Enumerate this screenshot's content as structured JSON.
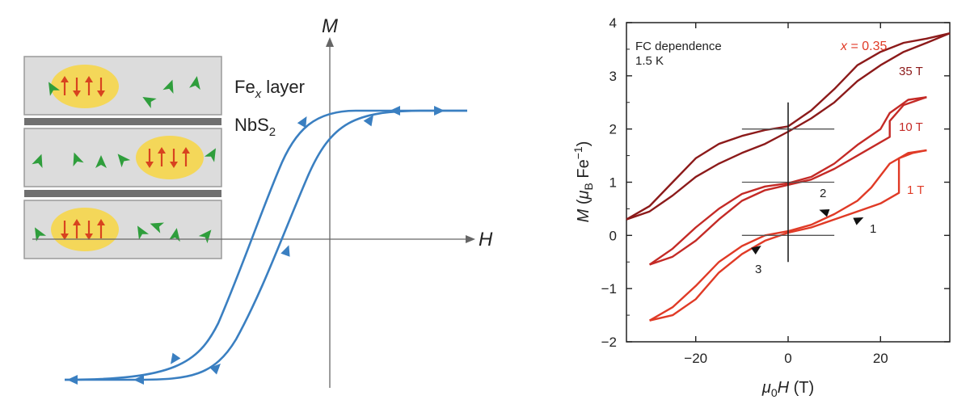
{
  "schematic": {
    "layer_label_main": "Fe",
    "layer_label_sub": "x",
    "layer_label_rest": " layer",
    "spacer_label_main": "NbS",
    "spacer_label_sub": "2",
    "axis_y": "M",
    "axis_x": "H",
    "colors": {
      "loop": "#3a7fc1",
      "spin_up": "#d8431f",
      "spin_green": "#2f9e3c",
      "cluster": "#f6d64a",
      "layer": "#d9d9d9",
      "spacer": "#6f6f6f"
    }
  },
  "chart_data": {
    "type": "line",
    "annotation_title": "FC dependence",
    "annotation_temp": "1.5 K",
    "composition_label": "x = 0.35",
    "xlabel": "μ0H (T)",
    "ylabel": "M (μB Fe−1)",
    "xlim": [
      -35,
      35
    ],
    "ylim": [
      -2,
      4
    ],
    "x_ticks": [
      "−20",
      "0",
      "20"
    ],
    "x_tick_values": [
      -20,
      0,
      20
    ],
    "y_ticks": [
      "−2",
      "−1",
      "0",
      "1",
      "2",
      "3",
      "4"
    ],
    "y_tick_values": [
      -2,
      -1,
      0,
      1,
      2,
      3,
      4
    ],
    "grid": false,
    "series": [
      {
        "name": "35 T",
        "color": "#8c1a1a",
        "sweep_down": [
          [
            35,
            3.8
          ],
          [
            30,
            3.7
          ],
          [
            25,
            3.62
          ],
          [
            20,
            3.45
          ],
          [
            15,
            3.2
          ],
          [
            10,
            2.75
          ],
          [
            5,
            2.35
          ],
          [
            0,
            2.05
          ],
          [
            -5,
            1.98
          ],
          [
            -10,
            1.87
          ],
          [
            -15,
            1.72
          ],
          [
            -20,
            1.45
          ],
          [
            -25,
            1.0
          ],
          [
            -30,
            0.55
          ],
          [
            -35,
            0.3
          ]
        ],
        "sweep_up": [
          [
            -35,
            0.3
          ],
          [
            -30,
            0.45
          ],
          [
            -25,
            0.75
          ],
          [
            -20,
            1.1
          ],
          [
            -15,
            1.35
          ],
          [
            -10,
            1.55
          ],
          [
            -5,
            1.72
          ],
          [
            0,
            1.95
          ],
          [
            5,
            2.2
          ],
          [
            10,
            2.5
          ],
          [
            15,
            2.9
          ],
          [
            20,
            3.2
          ],
          [
            25,
            3.45
          ],
          [
            30,
            3.62
          ],
          [
            35,
            3.8
          ]
        ]
      },
      {
        "name": "10 T",
        "color": "#c42a26",
        "sweep_down": [
          [
            30,
            2.6
          ],
          [
            26,
            2.55
          ],
          [
            22,
            2.3
          ],
          [
            20,
            2.0
          ],
          [
            15,
            1.7
          ],
          [
            10,
            1.35
          ],
          [
            5,
            1.1
          ],
          [
            0,
            0.98
          ],
          [
            -5,
            0.92
          ],
          [
            -10,
            0.78
          ],
          [
            -15,
            0.5
          ],
          [
            -20,
            0.15
          ],
          [
            -25,
            -0.25
          ],
          [
            -30,
            -0.55
          ]
        ],
        "sweep_up": [
          [
            -30,
            -0.55
          ],
          [
            -25,
            -0.4
          ],
          [
            -20,
            -0.1
          ],
          [
            -15,
            0.3
          ],
          [
            -10,
            0.65
          ],
          [
            -5,
            0.85
          ],
          [
            0,
            0.95
          ],
          [
            5,
            1.05
          ],
          [
            10,
            1.25
          ],
          [
            15,
            1.5
          ],
          [
            20,
            1.75
          ],
          [
            22,
            1.85
          ],
          [
            22,
            2.15
          ],
          [
            25,
            2.45
          ],
          [
            30,
            2.6
          ]
        ]
      },
      {
        "name": "1 T",
        "color": "#e03a26",
        "sweep_down": [
          [
            30,
            1.6
          ],
          [
            26,
            1.55
          ],
          [
            22,
            1.35
          ],
          [
            18,
            0.9
          ],
          [
            15,
            0.65
          ],
          [
            10,
            0.4
          ],
          [
            5,
            0.2
          ],
          [
            0,
            0.08
          ],
          [
            -5,
            0.0
          ],
          [
            -10,
            -0.2
          ],
          [
            -15,
            -0.5
          ],
          [
            -20,
            -0.95
          ],
          [
            -25,
            -1.35
          ],
          [
            -30,
            -1.6
          ]
        ],
        "sweep_up": [
          [
            -30,
            -1.6
          ],
          [
            -25,
            -1.5
          ],
          [
            -20,
            -1.2
          ],
          [
            -15,
            -0.7
          ],
          [
            -10,
            -0.35
          ],
          [
            -5,
            -0.1
          ],
          [
            0,
            0.05
          ],
          [
            5,
            0.15
          ],
          [
            10,
            0.3
          ],
          [
            15,
            0.45
          ],
          [
            20,
            0.6
          ],
          [
            24,
            0.8
          ],
          [
            24,
            1.45
          ],
          [
            27,
            1.55
          ],
          [
            30,
            1.6
          ]
        ]
      }
    ],
    "step_labels": [
      "1",
      "2",
      "3"
    ]
  }
}
